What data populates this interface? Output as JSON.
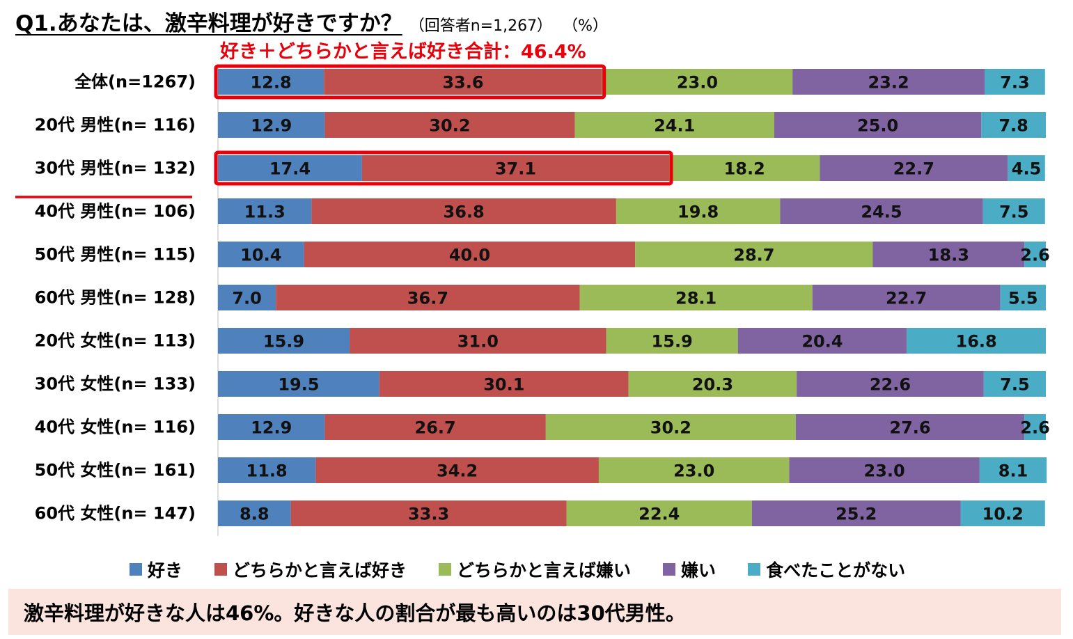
{
  "title": {
    "main": "Q1.あなたは、激辛料理が好きですか？",
    "sub": "（回答者n=1,267）",
    "unit": "（%）"
  },
  "total_label": "好き＋どちらかと言えば好き合計：46.4%",
  "summary": "激辛料理が好きな人は46%。好きな人の割合が最も高いのは30代男性。",
  "colors": {
    "like": "#4f81bd",
    "somewhat_like": "#c0504d",
    "somewhat_dislike": "#9bbb59",
    "dislike": "#8064a2",
    "never_eaten": "#4bacc6",
    "highlight": "#e8000b"
  },
  "chart_data": {
    "type": "bar",
    "orientation": "horizontal",
    "stacked": true,
    "unit": "%",
    "xlim": [
      0,
      100
    ],
    "categories": [
      "全体(n=1267)",
      "20代 男性(n= 116)",
      "30代 男性(n= 132)",
      "40代 男性(n= 106)",
      "50代 男性(n= 115)",
      "60代 男性(n= 128)",
      "20代 女性(n= 113)",
      "30代 女性(n= 133)",
      "40代 女性(n= 116)",
      "50代 女性(n= 161)",
      "60代 女性(n= 147)"
    ],
    "series": [
      {
        "name": "好き",
        "values": [
          12.8,
          12.9,
          17.4,
          11.3,
          10.4,
          7.0,
          15.9,
          19.5,
          12.9,
          11.8,
          8.8
        ]
      },
      {
        "name": "どちらかと言えば好き",
        "values": [
          33.6,
          30.2,
          37.1,
          36.8,
          40.0,
          36.7,
          31.0,
          30.1,
          26.7,
          34.2,
          33.3
        ]
      },
      {
        "name": "どちらかと言えば嫌い",
        "values": [
          23.0,
          24.1,
          18.2,
          19.8,
          28.7,
          28.1,
          15.9,
          20.3,
          30.2,
          23.0,
          22.4
        ]
      },
      {
        "name": "嫌い",
        "values": [
          23.2,
          25.0,
          22.7,
          24.5,
          18.3,
          22.7,
          20.4,
          22.6,
          27.6,
          23.0,
          25.2
        ]
      },
      {
        "name": "食べたことがない",
        "values": [
          7.3,
          7.8,
          4.5,
          7.5,
          2.6,
          5.5,
          16.8,
          7.5,
          2.6,
          8.1,
          10.2
        ]
      }
    ],
    "highlighted_rows": [
      "全体(n=1267)",
      "30代 男性(n= 132)"
    ],
    "underlined_row": "30代 男性(n= 132)",
    "legend_position": "bottom"
  }
}
